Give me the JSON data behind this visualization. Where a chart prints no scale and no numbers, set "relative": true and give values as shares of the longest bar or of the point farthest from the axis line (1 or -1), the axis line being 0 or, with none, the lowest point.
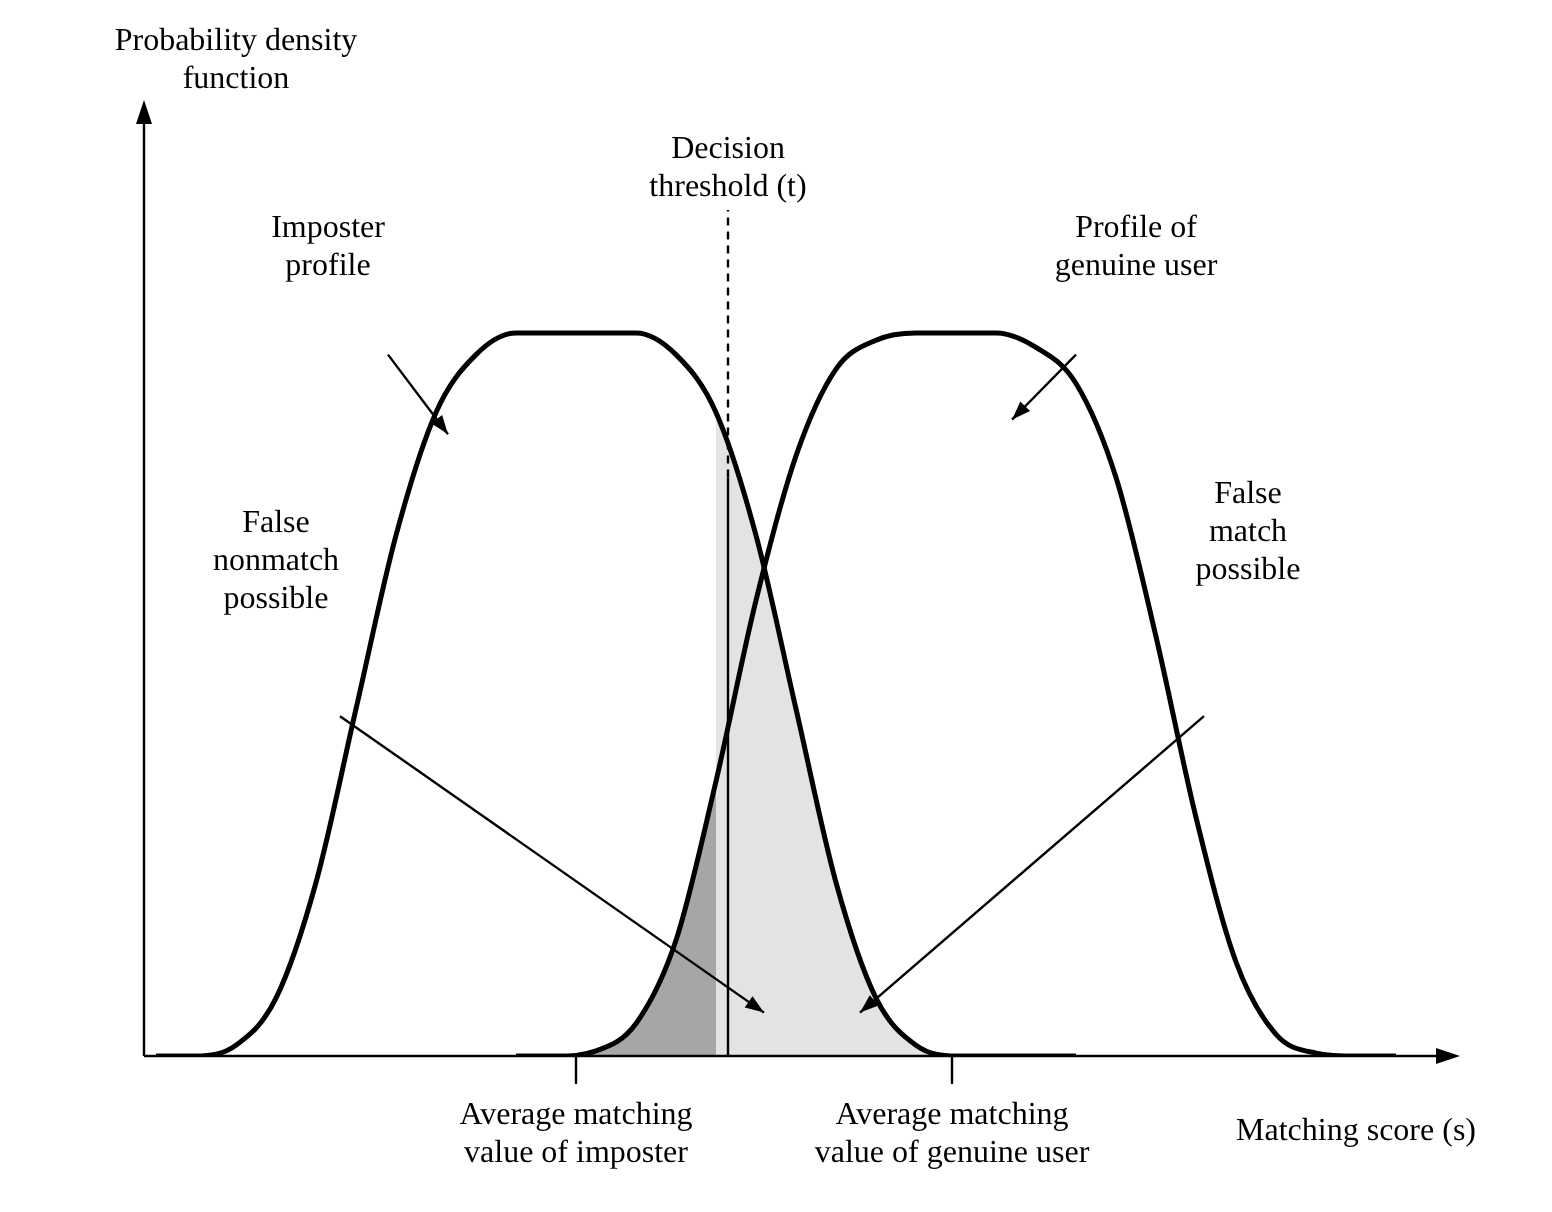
{
  "chart_data": {
    "type": "line",
    "relative": true,
    "xlabel": "Matching score (s)",
    "categories": [
      null,
      null,
      null,
      null,
      null,
      null,
      null,
      null,
      null,
      null,
      null,
      null,
      null,
      null,
      null,
      null,
      null,
      null,
      null,
      null,
      null,
      null,
      null,
      null,
      null,
      null,
      null,
      null,
      null,
      null,
      null,
      null
    ],
    "series": [
      {
        "type": "area",
        "color": "#a6a6a6",
        "values": [
          null,
          null,
          null,
          null,
          null,
          null,
          null,
          null,
          null,
          0,
          0,
          0.007,
          0.045,
          0.16,
          0.38,
          null,
          null,
          null,
          null,
          null,
          null,
          null,
          null,
          null,
          null,
          null,
          null,
          null,
          null,
          null,
          null,
          null
        ]
      },
      {
        "type": "area",
        "color": "#e3e3e3",
        "values": [
          null,
          null,
          null,
          null,
          null,
          null,
          null,
          null,
          null,
          null,
          null,
          null,
          null,
          null,
          0.89,
          0.72,
          0.48,
          0.24,
          0.08,
          0.015,
          0,
          0,
          0,
          0,
          null,
          null,
          null,
          null,
          null,
          null,
          null,
          null
        ]
      },
      {
        "color": "#000000",
        "values": [
          0,
          0,
          0.015,
          0.08,
          0.24,
          0.48,
          0.72,
          0.89,
          0.97,
          1,
          1,
          1,
          1,
          0.97,
          0.89,
          0.72,
          0.48,
          0.24,
          0.08,
          0.015,
          0,
          0,
          0,
          0,
          null,
          null,
          null,
          null,
          null,
          null,
          null,
          null
        ]
      },
      {
        "color": "#000000",
        "values": [
          null,
          null,
          null,
          null,
          null,
          null,
          null,
          null,
          null,
          0,
          0,
          0.007,
          0.045,
          0.16,
          0.38,
          0.63,
          0.83,
          0.95,
          0.99,
          1,
          1,
          1,
          0.98,
          0.93,
          0.8,
          0.58,
          0.33,
          0.13,
          0.03,
          0.004,
          0,
          0
        ]
      }
    ],
    "annotations": [
      "Probability density function",
      "Decision threshold (t)",
      "Imposter profile",
      "Profile of genuine user",
      "False nonmatch possible",
      "False match possible",
      "Average matching value of imposter",
      "Average matching value of genuine user"
    ],
    "legend": false,
    "tick_labels": false,
    "marker": "none",
    "line_style": "solid"
  }
}
